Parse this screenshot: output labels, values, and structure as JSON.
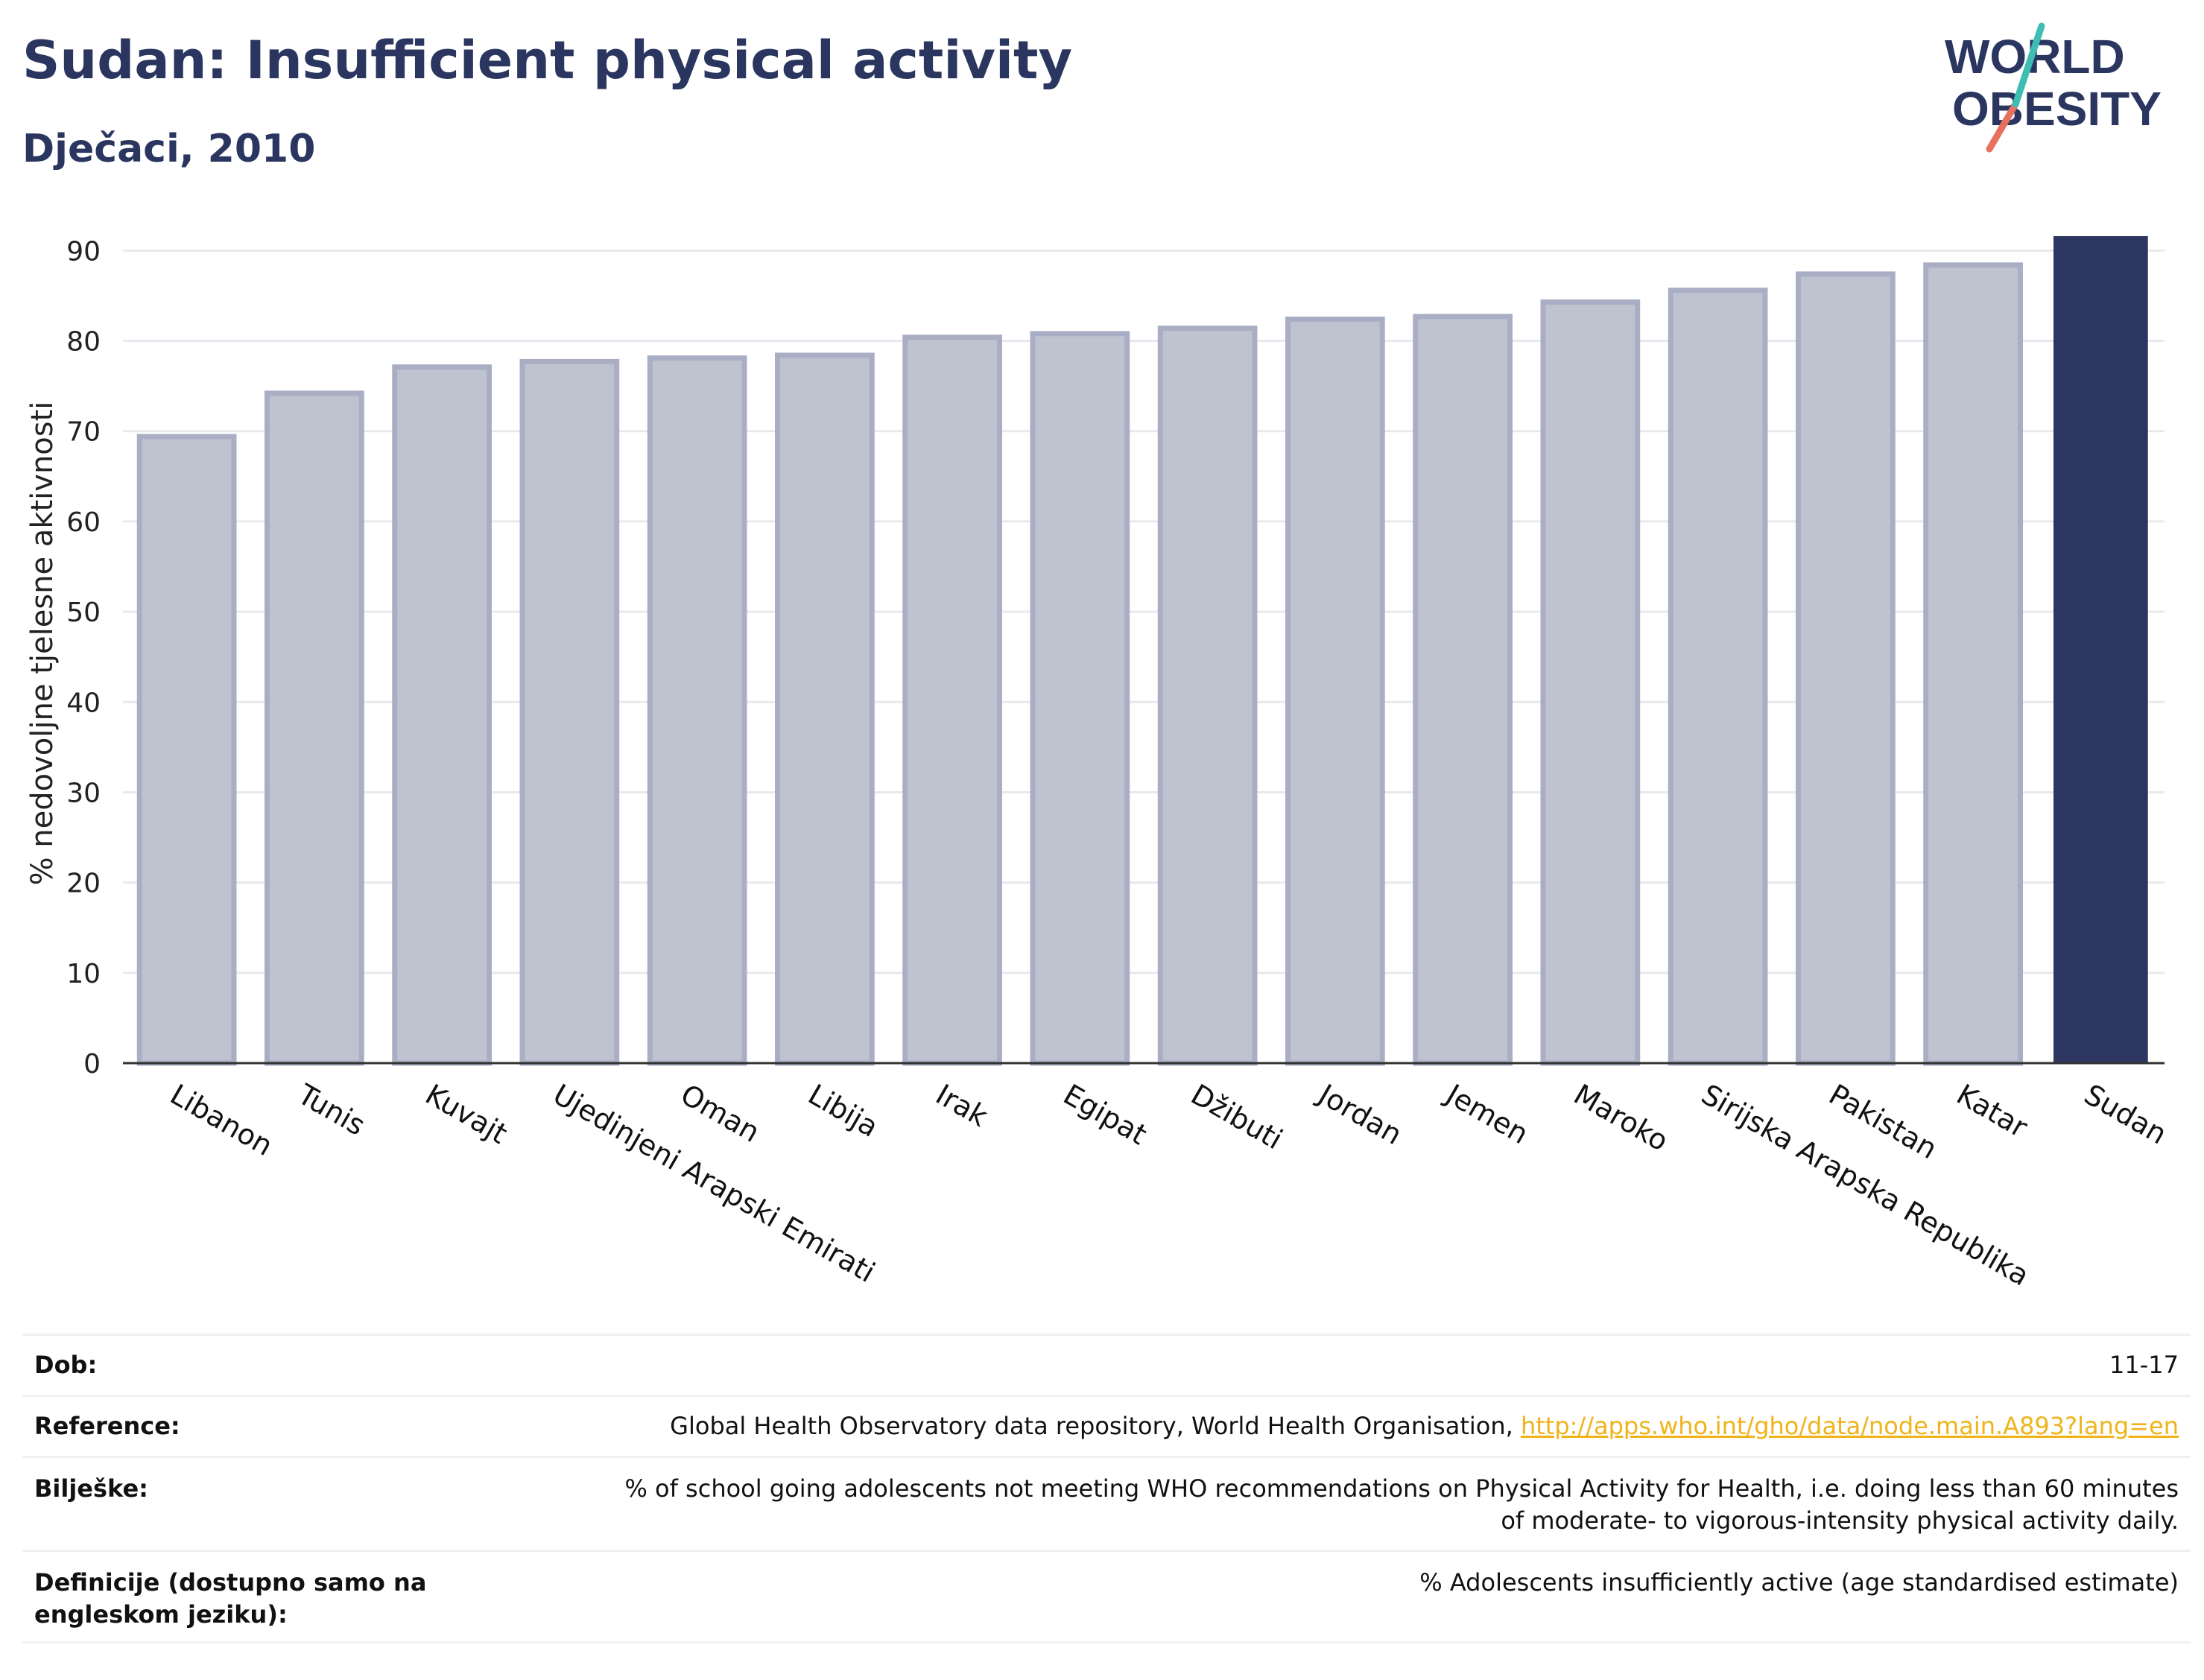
{
  "header": {
    "title": "Sudan: Insufficient physical activity",
    "subtitle": "Dječaci, 2010",
    "logo_line1": "WORLD",
    "logo_line2": "OBESITY"
  },
  "chart_data": {
    "type": "bar",
    "categories": [
      "Libanon",
      "Tunis",
      "Kuvajt",
      "Ujedinjeni Arapski Emirati",
      "Oman",
      "Libija",
      "Irak",
      "Egipat",
      "Džibuti",
      "Jordan",
      "Jemen",
      "Maroko",
      "Sirijska Arapska Republika",
      "Pakistan",
      "Katar",
      "Sudan"
    ],
    "values": [
      69.4,
      74.2,
      77.1,
      77.7,
      78.1,
      78.4,
      80.4,
      80.8,
      81.4,
      82.4,
      82.7,
      84.3,
      85.6,
      87.4,
      88.4,
      91.6
    ],
    "highlight": "Sudan",
    "ylabel": "% nedovoljne tjelesne aktivnosti",
    "ylim": [
      0,
      93
    ],
    "yticks": [
      0,
      10,
      20,
      30,
      40,
      50,
      60,
      70,
      80,
      90
    ],
    "grid": true,
    "colors": {
      "bar": "#bfc3cf",
      "bar_border": "#a9aec4",
      "highlight": "#2c3660",
      "grid": "#e8e9ee",
      "axis": "#333333"
    }
  },
  "meta": {
    "rows": [
      {
        "label": "Dob:",
        "value": "11-17"
      },
      {
        "label": "Reference:",
        "value": "Global Health Observatory data repository, World Health Organisation, ",
        "link": "http://apps.who.int/gho/data/node.main.A893?lang=en"
      },
      {
        "label": "Bilješke:",
        "value": "% of school going adolescents not meeting WHO recommendations on Physical Activity for Health, i.e. doing less than 60 minutes of moderate- to vigorous-intensity physical activity daily."
      },
      {
        "label": "Definicije (dostupno samo na engleskom jeziku):",
        "value": "% Adolescents insufficiently active (age standardised estimate)"
      }
    ]
  }
}
